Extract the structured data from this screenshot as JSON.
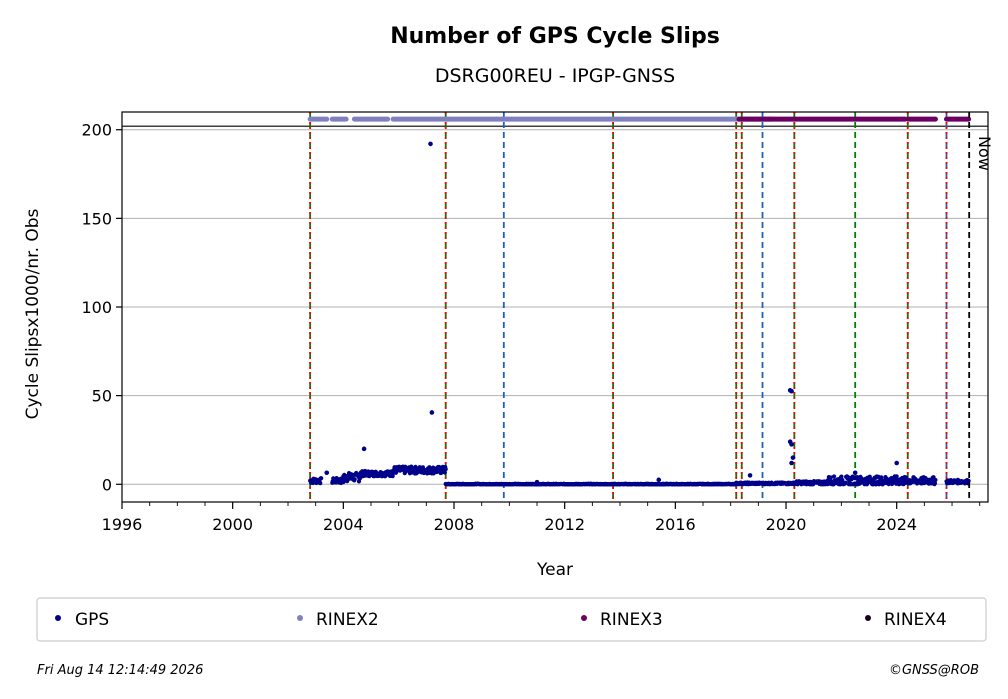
{
  "chart_data": {
    "type": "scatter",
    "title": "Number of GPS Cycle Slips",
    "subtitle": "DSRG00REU - IPGP-GNSS",
    "xlabel": "Year",
    "ylabel": "Cycle Slipsx1000/nr. Obs",
    "xlim": [
      1996,
      2027.3
    ],
    "ylim": [
      -10,
      210
    ],
    "xticks": [
      1996,
      2000,
      2004,
      2008,
      2012,
      2016,
      2020,
      2024
    ],
    "xtick_labels": [
      "1996",
      "2000",
      "2004",
      "2008",
      "2012",
      "2016",
      "2020",
      "2024"
    ],
    "yticks": [
      0,
      50,
      100,
      150,
      200
    ],
    "ytick_labels": [
      "0",
      "50",
      "100",
      "150",
      "200"
    ],
    "grid": "horizontal",
    "now_label": "Now",
    "now_x": 2026.62,
    "availability_y": 206,
    "reference_y": 202,
    "series": [
      {
        "name": "GPS",
        "color": "#00008b",
        "segments": [
          {
            "x_start": 2002.8,
            "x_end": 2003.2,
            "base": 2,
            "spread": 1.5
          },
          {
            "x_start": 2003.6,
            "x_end": 2004.0,
            "base": 2,
            "spread": 1.5
          },
          {
            "x_start": 2004.0,
            "x_end": 2004.6,
            "base": 4,
            "spread": 2.5
          },
          {
            "x_start": 2004.6,
            "x_end": 2005.8,
            "base": 6,
            "spread": 1.5
          },
          {
            "x_start": 2005.8,
            "x_end": 2007.7,
            "base": 8,
            "spread": 2
          },
          {
            "x_start": 2007.7,
            "x_end": 2018.2,
            "base": 0,
            "spread": 0.3
          },
          {
            "x_start": 2018.2,
            "x_end": 2020.3,
            "base": 0.5,
            "spread": 0.5
          },
          {
            "x_start": 2020.3,
            "x_end": 2021.5,
            "base": 0.8,
            "spread": 1
          },
          {
            "x_start": 2021.5,
            "x_end": 2024.3,
            "base": 2,
            "spread": 2.5
          },
          {
            "x_start": 2024.3,
            "x_end": 2025.4,
            "base": 2,
            "spread": 2
          },
          {
            "x_start": 2025.8,
            "x_end": 2026.6,
            "base": 1.5,
            "spread": 1
          }
        ],
        "points": [
          [
            2007.15,
            192
          ],
          [
            2007.2,
            40.5
          ],
          [
            2004.75,
            20
          ],
          [
            2003.4,
            6.5
          ],
          [
            2020.15,
            53
          ],
          [
            2020.2,
            52.5
          ],
          [
            2020.15,
            24
          ],
          [
            2020.2,
            22.5
          ],
          [
            2020.25,
            15
          ],
          [
            2020.2,
            12
          ],
          [
            2018.7,
            5
          ],
          [
            2015.4,
            2.5
          ],
          [
            2011.0,
            1.2
          ],
          [
            2024.0,
            12
          ],
          [
            2022.5,
            6.5
          ]
        ]
      },
      {
        "name": "RINEX2",
        "color": "#8080c0",
        "spans": [
          [
            2002.8,
            2003.4
          ],
          [
            2003.6,
            2004.1
          ],
          [
            2004.4,
            2005.6
          ],
          [
            2005.8,
            2019.5
          ]
        ]
      },
      {
        "name": "RINEX3",
        "color": "#6b0062",
        "spans": [
          [
            2018.3,
            2024.3
          ],
          [
            2024.4,
            2025.4
          ],
          [
            2025.8,
            2026.6
          ]
        ]
      },
      {
        "name": "RINEX4",
        "color": "#1a0020",
        "spans": []
      }
    ],
    "event_lines": [
      {
        "x": 2002.8,
        "color": "#008000",
        "style": "dashed"
      },
      {
        "x": 2002.8,
        "color": "#ff0000",
        "style": "dotted"
      },
      {
        "x": 2007.7,
        "color": "#008000",
        "style": "dashed"
      },
      {
        "x": 2007.7,
        "color": "#ff0000",
        "style": "dotted"
      },
      {
        "x": 2009.8,
        "color": "#1f5fbf",
        "style": "dashed"
      },
      {
        "x": 2013.75,
        "color": "#008000",
        "style": "dashed"
      },
      {
        "x": 2013.75,
        "color": "#ff0000",
        "style": "dotted"
      },
      {
        "x": 2018.2,
        "color": "#008000",
        "style": "dashed"
      },
      {
        "x": 2018.2,
        "color": "#ff0000",
        "style": "dotted"
      },
      {
        "x": 2018.4,
        "color": "#008000",
        "style": "dashed"
      },
      {
        "x": 2018.4,
        "color": "#ff0000",
        "style": "dotted"
      },
      {
        "x": 2019.15,
        "color": "#1f5fbf",
        "style": "dashed"
      },
      {
        "x": 2020.3,
        "color": "#008000",
        "style": "dashed"
      },
      {
        "x": 2020.3,
        "color": "#ff0000",
        "style": "dotted"
      },
      {
        "x": 2022.5,
        "color": "#008000",
        "style": "dashed"
      },
      {
        "x": 2024.4,
        "color": "#008000",
        "style": "dashed"
      },
      {
        "x": 2024.4,
        "color": "#ff0000",
        "style": "dotted"
      },
      {
        "x": 2025.8,
        "color": "#1f5fbf",
        "style": "dashed"
      },
      {
        "x": 2025.8,
        "color": "#ff0000",
        "style": "dotted"
      }
    ]
  },
  "legend": {
    "items": [
      {
        "label": "GPS",
        "color": "#00008b"
      },
      {
        "label": "RINEX2",
        "color": "#8080c0"
      },
      {
        "label": "RINEX3",
        "color": "#6b0062"
      },
      {
        "label": "RINEX4",
        "color": "#1a0020"
      }
    ]
  },
  "footer": {
    "timestamp": "Fri Aug 14 12:14:49 2026",
    "copyright": "©GNSS@ROB"
  }
}
